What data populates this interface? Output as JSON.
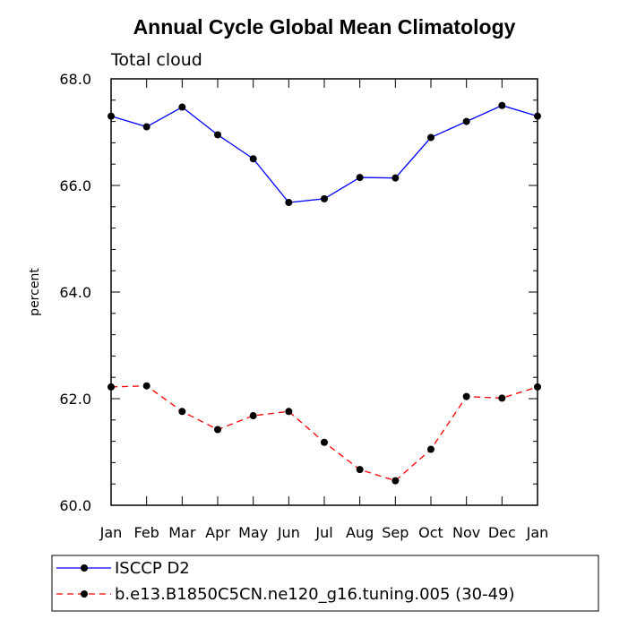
{
  "chart_data": {
    "type": "line",
    "title": "Annual Cycle Global Mean Climatology",
    "subtitle": "Total cloud",
    "ylabel": "percent",
    "xlabel": "",
    "categories": [
      "Jan",
      "Feb",
      "Mar",
      "Apr",
      "May",
      "Jun",
      "Jul",
      "Aug",
      "Sep",
      "Oct",
      "Nov",
      "Dec",
      "Jan"
    ],
    "ylim": [
      60.0,
      68.0
    ],
    "yticks": [
      "60.0",
      "62.0",
      "64.0",
      "66.0",
      "68.0"
    ],
    "grid": false,
    "legend_position": "bottom",
    "series": [
      {
        "name": "ISCCP D2",
        "color": "#0000ff",
        "dash": "solid",
        "values": [
          67.3,
          67.1,
          67.47,
          66.95,
          66.5,
          65.68,
          65.75,
          66.15,
          66.14,
          66.9,
          67.2,
          67.5,
          67.3
        ]
      },
      {
        "name": "b.e13.B1850C5CN.ne120_g16.tuning.005 (30-49)",
        "color": "#ff0000",
        "dash": "dashed",
        "values": [
          62.22,
          62.24,
          61.76,
          61.42,
          61.68,
          61.76,
          61.18,
          60.67,
          60.46,
          61.05,
          62.04,
          62.01,
          62.22
        ]
      }
    ]
  }
}
